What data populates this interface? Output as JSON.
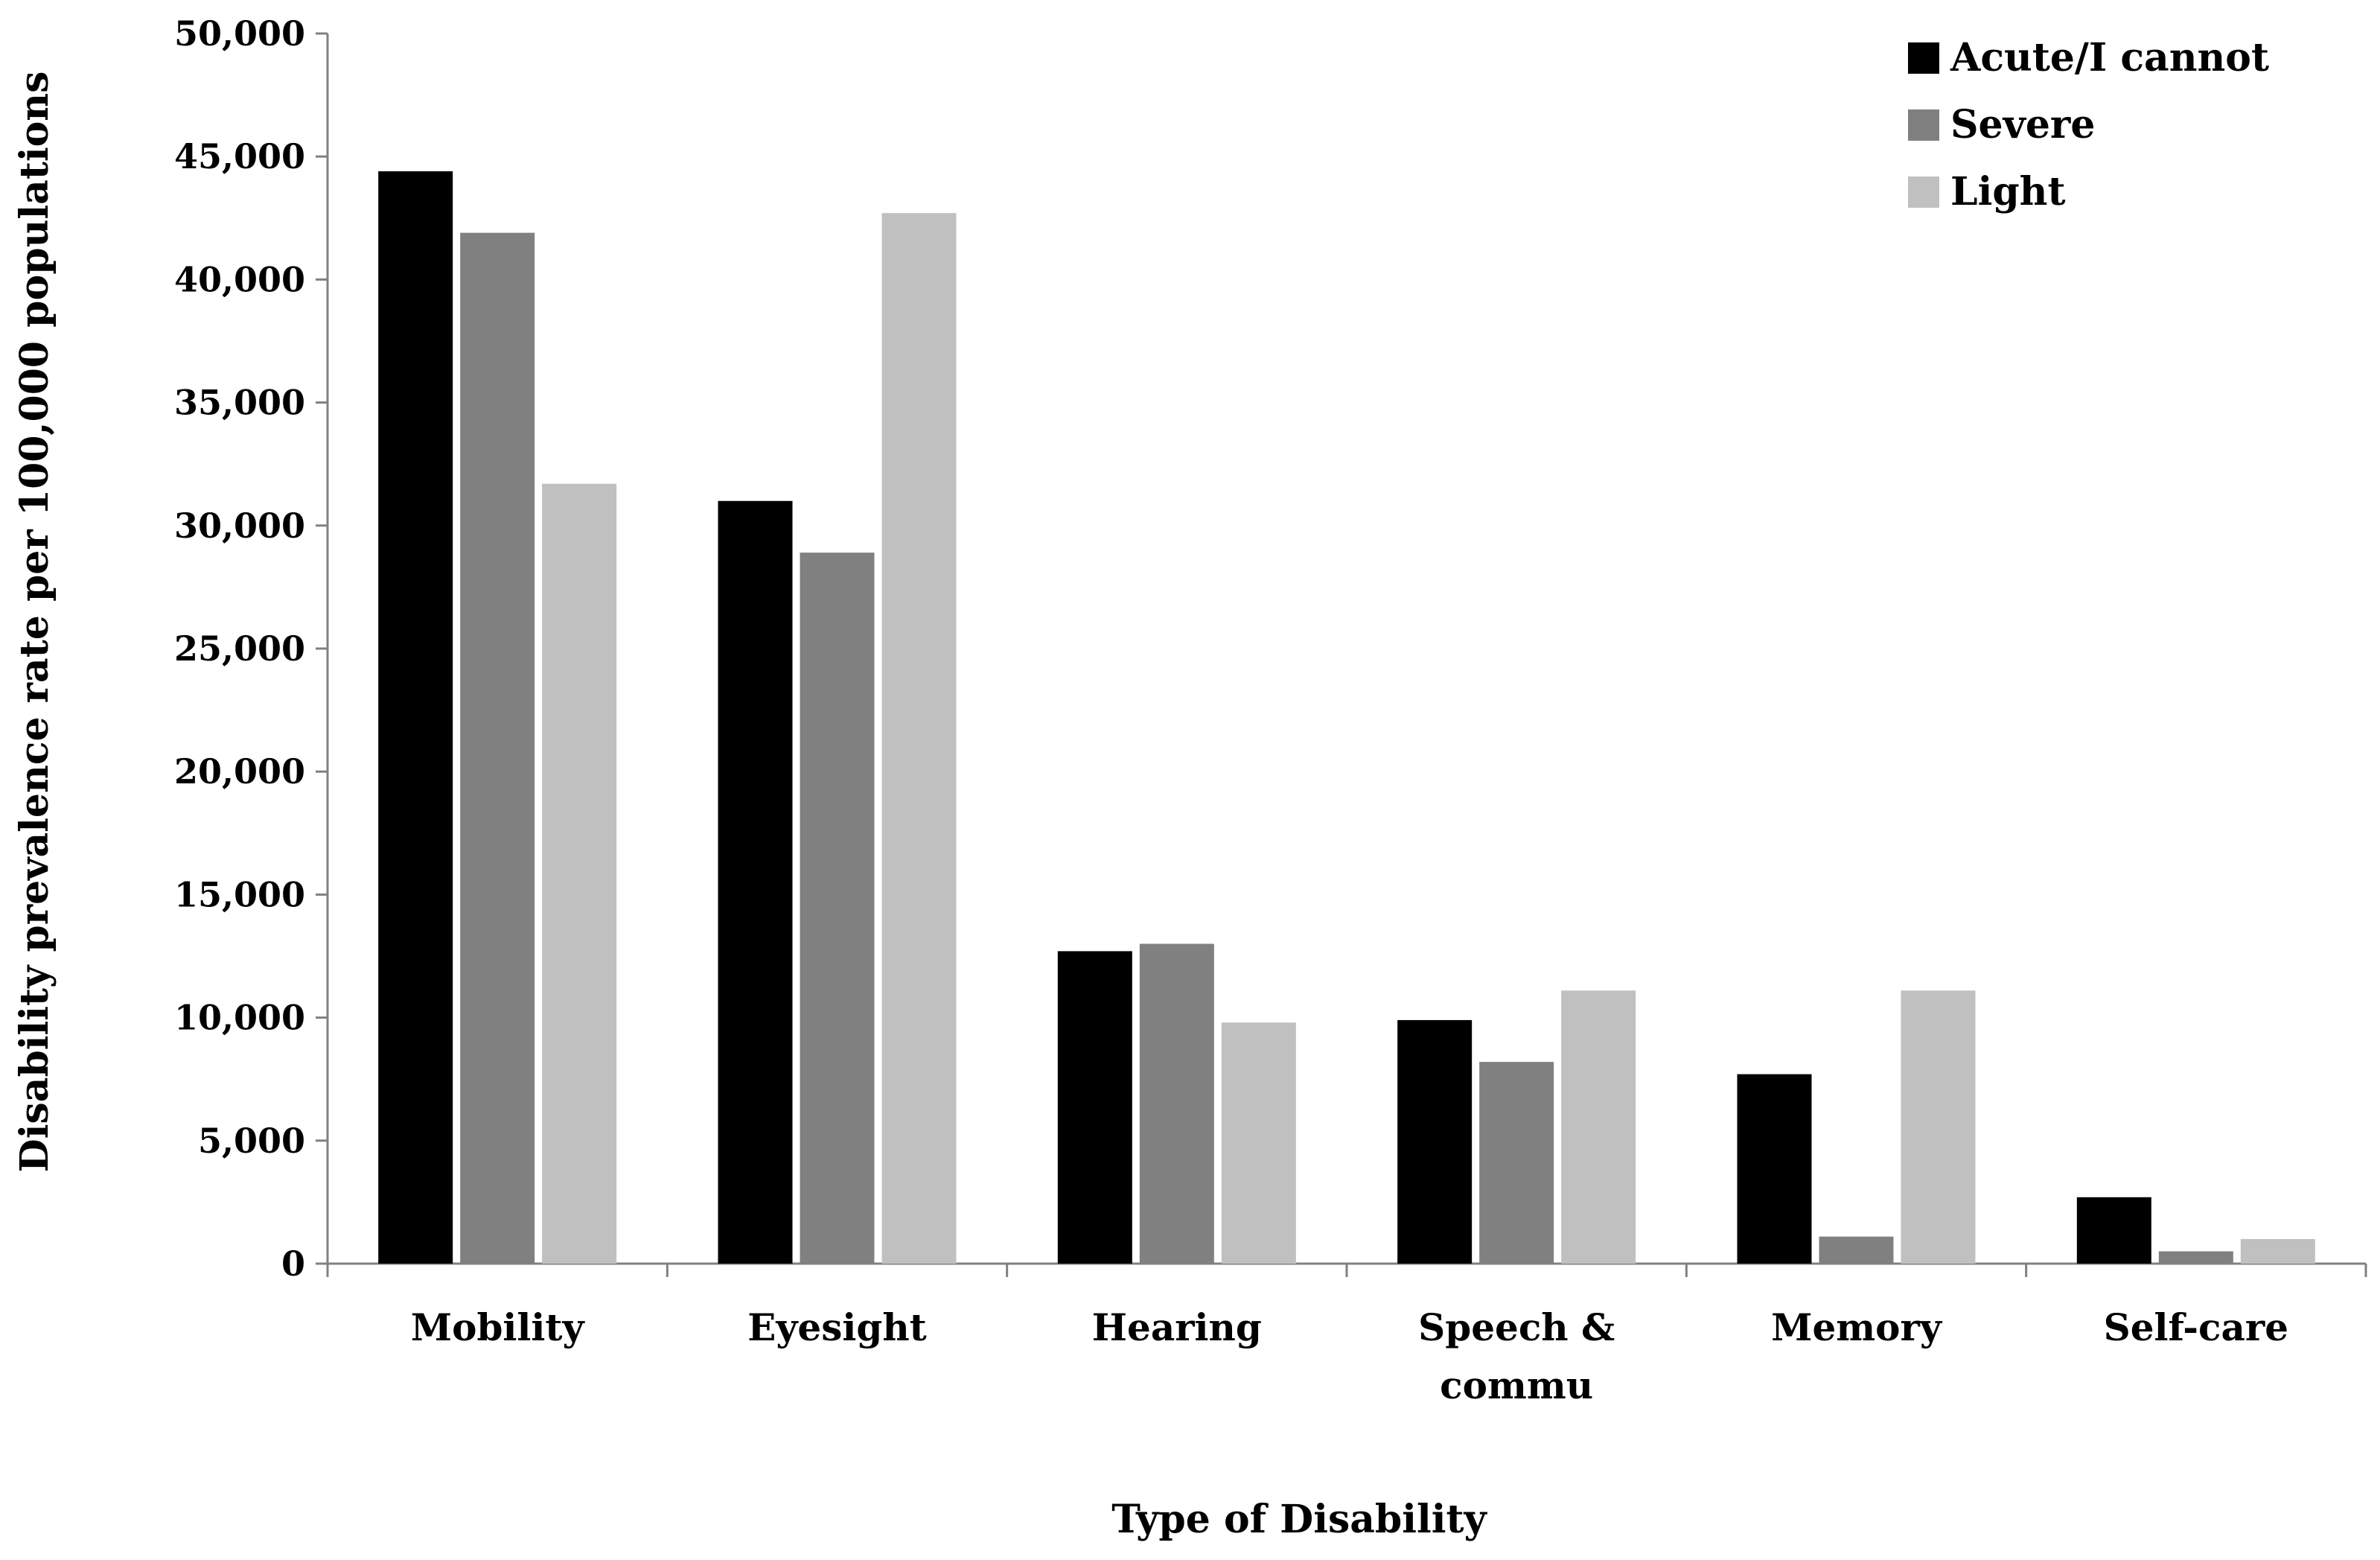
{
  "chart_data": {
    "type": "bar",
    "title": "",
    "xlabel": "Type of Disability",
    "ylabel": "Disability prevalence rate per 100,000 populations",
    "ylim": [
      0,
      50000
    ],
    "yticks": [
      0,
      5000,
      10000,
      15000,
      20000,
      25000,
      30000,
      35000,
      40000,
      45000,
      50000
    ],
    "ytick_labels": [
      "0",
      "5,000",
      "10,000",
      "15,000",
      "20,000",
      "25,000",
      "30,000",
      "35,000",
      "40,000",
      "45,000",
      "50,000"
    ],
    "grid": false,
    "legend_position": "top-right",
    "categories": [
      [
        "Mobility"
      ],
      [
        "Eyesight"
      ],
      [
        "Hearing"
      ],
      [
        "Speech &",
        "commu"
      ],
      [
        "Memory"
      ],
      [
        "Self-care"
      ]
    ],
    "series": [
      {
        "name": "Acute/I cannot",
        "color": "#000000",
        "values": [
          44400,
          31000,
          12700,
          9900,
          7700,
          2700
        ]
      },
      {
        "name": "Severe",
        "color": "#808080",
        "values": [
          41900,
          28900,
          13000,
          8200,
          1100,
          500
        ]
      },
      {
        "name": "Light",
        "color": "#c0c0c0",
        "values": [
          31700,
          42700,
          9800,
          11100,
          11100,
          1000
        ]
      }
    ]
  }
}
